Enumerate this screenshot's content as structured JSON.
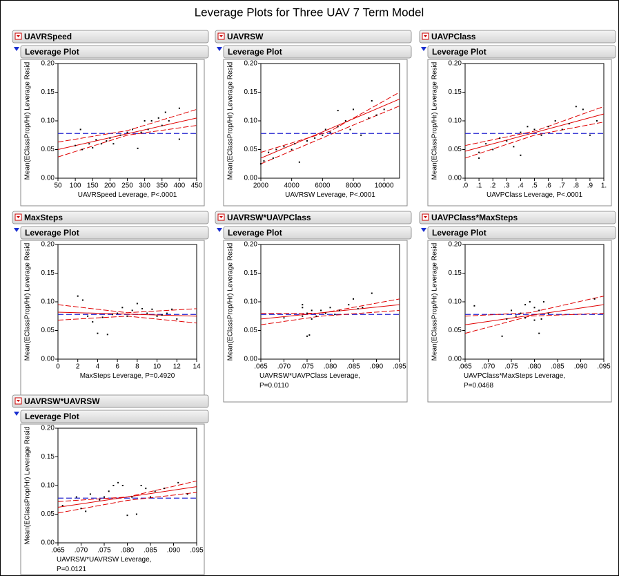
{
  "title": "Leverage Plots for Three UAV 7 Term Model",
  "chart_data": [
    {
      "type": "scatter",
      "header": "UAVRSpeed",
      "subheader": "Leverage Plot",
      "y_label": "Mean(EClassProp/Hr) Leverage Resid",
      "x_label": "UAVRSpeed Leverage, P<.0001",
      "xlim": [
        50,
        450
      ],
      "xticks": [
        50,
        100,
        150,
        200,
        250,
        300,
        350,
        400,
        450
      ],
      "ylim": [
        0,
        0.2
      ],
      "yticks": [
        {
          "value": 0,
          "label": "0.00"
        },
        {
          "value": 0.05,
          "label": "0.05"
        },
        {
          "value": 0.1,
          "label": "0.10"
        },
        {
          "value": 0.15,
          "label": "0.15"
        },
        {
          "value": 0.2,
          "label": "0.20"
        }
      ],
      "x": [
        100,
        115,
        120,
        140,
        150,
        160,
        175,
        190,
        200,
        210,
        230,
        250,
        265,
        280,
        290,
        300,
        310,
        320,
        340,
        350,
        360,
        370,
        400,
        400
      ],
      "values": [
        0.057,
        0.085,
        0.05,
        0.06,
        0.053,
        0.067,
        0.06,
        0.065,
        0.07,
        0.06,
        0.075,
        0.08,
        0.085,
        0.052,
        0.08,
        0.1,
        0.085,
        0.1,
        0.105,
        0.092,
        0.115,
        0.1,
        0.122,
        0.068
      ],
      "fit": {
        "x": [
          50,
          450
        ],
        "y": [
          0.05,
          0.105
        ]
      },
      "upper": {
        "x": [
          50,
          250,
          450
        ],
        "y": [
          0.063,
          0.083,
          0.12
        ]
      },
      "lower": {
        "x": [
          50,
          250,
          450
        ],
        "y": [
          0.037,
          0.075,
          0.092
        ]
      },
      "mean": 0.078,
      "point_color": "#000000",
      "fit_color": "#e00000",
      "mean_color": "#2424d0"
    },
    {
      "type": "scatter",
      "header": "UAVRSW",
      "subheader": "Leverage Plot",
      "y_label": "Mean(EClassProp/Hr) Leverage Resid",
      "x_label": "UAVRSW Leverage, P<.0001",
      "xlim": [
        2000,
        11000
      ],
      "xticks": [
        2000,
        4000,
        6000,
        8000,
        10000
      ],
      "ylim": [
        0,
        0.2
      ],
      "yticks": [
        {
          "value": 0,
          "label": "0.00"
        },
        {
          "value": 0.05,
          "label": "0.05"
        },
        {
          "value": 0.1,
          "label": "0.10"
        },
        {
          "value": 0.15,
          "label": "0.15"
        },
        {
          "value": 0.2,
          "label": "0.20"
        }
      ],
      "x": [
        2000,
        2200,
        2500,
        2800,
        3000,
        3500,
        4000,
        4200,
        4500,
        5000,
        5500,
        6000,
        6200,
        6500,
        7000,
        7000,
        7500,
        7800,
        8000,
        8500,
        9000,
        9200,
        9500,
        10000
      ],
      "values": [
        0.025,
        0.03,
        0.045,
        0.035,
        0.05,
        0.055,
        0.05,
        0.06,
        0.028,
        0.065,
        0.07,
        0.075,
        0.085,
        0.08,
        0.118,
        0.09,
        0.1,
        0.085,
        0.12,
        0.075,
        0.105,
        0.135,
        0.11,
        0.12
      ],
      "fit": {
        "x": [
          2000,
          11000
        ],
        "y": [
          0.035,
          0.138
        ]
      },
      "upper": {
        "x": [
          2000,
          6500,
          11000
        ],
        "y": [
          0.045,
          0.082,
          0.15
        ]
      },
      "lower": {
        "x": [
          2000,
          6500,
          11000
        ],
        "y": [
          0.025,
          0.076,
          0.126
        ]
      },
      "mean": 0.078,
      "point_color": "#000000",
      "fit_color": "#e00000",
      "mean_color": "#2424d0"
    },
    {
      "type": "scatter",
      "header": "UAVPClass",
      "subheader": "Leverage Plot",
      "y_label": "Mean(EClassProp/Hr) Leverage Resid",
      "x_label": "UAVPClass Leverage, P<.0001",
      "xlim": [
        0,
        1
      ],
      "xticks": [
        {
          "value": 0,
          "label": ".0"
        },
        {
          "value": 0.1,
          "label": ".1"
        },
        {
          "value": 0.2,
          "label": ".2"
        },
        {
          "value": 0.3,
          "label": ".3"
        },
        {
          "value": 0.4,
          "label": ".4"
        },
        {
          "value": 0.5,
          "label": ".5"
        },
        {
          "value": 0.6,
          "label": ".6"
        },
        {
          "value": 0.7,
          "label": ".7"
        },
        {
          "value": 0.8,
          "label": ".8"
        },
        {
          "value": 0.9,
          "label": ".9"
        },
        {
          "value": 1,
          "label": "1."
        }
      ],
      "ylim": [
        0,
        0.2
      ],
      "yticks": [
        {
          "value": 0,
          "label": "0.00"
        },
        {
          "value": 0.05,
          "label": "0.05"
        },
        {
          "value": 0.1,
          "label": "0.10"
        },
        {
          "value": 0.15,
          "label": "0.15"
        },
        {
          "value": 0.2,
          "label": "0.20"
        }
      ],
      "x": [
        0.1,
        0.1,
        0.15,
        0.2,
        0.25,
        0.3,
        0.35,
        0.4,
        0.4,
        0.45,
        0.5,
        0.55,
        0.6,
        0.65,
        0.7,
        0.75,
        0.8,
        0.85,
        0.9,
        0.95
      ],
      "values": [
        0.035,
        0.045,
        0.06,
        0.05,
        0.07,
        0.065,
        0.055,
        0.04,
        0.08,
        0.09,
        0.085,
        0.075,
        0.09,
        0.1,
        0.085,
        0.095,
        0.125,
        0.12,
        0.075,
        0.1
      ],
      "fit": {
        "x": [
          0,
          1
        ],
        "y": [
          0.047,
          0.112
        ]
      },
      "upper": {
        "x": [
          0,
          0.5,
          1
        ],
        "y": [
          0.057,
          0.082,
          0.125
        ]
      },
      "lower": {
        "x": [
          0,
          0.5,
          1
        ],
        "y": [
          0.035,
          0.075,
          0.098
        ]
      },
      "mean": 0.078,
      "point_color": "#000000",
      "fit_color": "#e00000",
      "mean_color": "#2424d0"
    },
    {
      "type": "scatter",
      "header": "MaxSteps",
      "subheader": "Leverage Plot",
      "y_label": "Mean(EClassProp/Hr) Leverage Resid",
      "x_label": "MaxSteps Leverage, P=0.4920",
      "xlim": [
        0,
        14
      ],
      "xticks": [
        0,
        2,
        4,
        6,
        8,
        10,
        12,
        14
      ],
      "ylim": [
        0,
        0.2
      ],
      "yticks": [
        {
          "value": 0,
          "label": "0.00"
        },
        {
          "value": 0.05,
          "label": "0.05"
        },
        {
          "value": 0.1,
          "label": "0.10"
        },
        {
          "value": 0.15,
          "label": "0.15"
        },
        {
          "value": 0.2,
          "label": "0.20"
        }
      ],
      "x": [
        2,
        2.5,
        3,
        3.5,
        4,
        4.5,
        5,
        5.5,
        6,
        6.5,
        7,
        7.5,
        8,
        8.5,
        9,
        9.5,
        10,
        10.5,
        11,
        11.5,
        12
      ],
      "values": [
        0.11,
        0.103,
        0.075,
        0.065,
        0.045,
        0.073,
        0.043,
        0.078,
        0.08,
        0.09,
        0.075,
        0.085,
        0.097,
        0.088,
        0.08,
        0.087,
        0.075,
        0.077,
        0.08,
        0.087,
        0.07
      ],
      "fit": {
        "x": [
          0,
          14
        ],
        "y": [
          0.082,
          0.075
        ]
      },
      "upper": {
        "x": [
          0,
          7,
          14
        ],
        "y": [
          0.095,
          0.081,
          0.088
        ]
      },
      "lower": {
        "x": [
          0,
          7,
          14
        ],
        "y": [
          0.068,
          0.075,
          0.063
        ]
      },
      "mean": 0.078,
      "point_color": "#000000",
      "fit_color": "#e00000",
      "mean_color": "#2424d0"
    },
    {
      "type": "scatter",
      "header": "UAVRSW*UAVPClass",
      "subheader": "Leverage Plot",
      "y_label": "Mean(EClassProp/Hr) Leverage Resid",
      "x_label": "UAVRSW*UAVPClass Leverage, P=0.0110",
      "xlim": [
        0.065,
        0.095
      ],
      "xticks": [
        {
          "value": 0.065,
          "label": ".065"
        },
        {
          "value": 0.07,
          "label": ".070"
        },
        {
          "value": 0.075,
          "label": ".075"
        },
        {
          "value": 0.08,
          "label": ".080"
        },
        {
          "value": 0.085,
          "label": ".085"
        },
        {
          "value": 0.09,
          "label": ".090"
        },
        {
          "value": 0.095,
          "label": ".095"
        }
      ],
      "ylim": [
        0,
        0.2
      ],
      "yticks": [
        {
          "value": 0,
          "label": "0.00"
        },
        {
          "value": 0.05,
          "label": "0.05"
        },
        {
          "value": 0.1,
          "label": "0.10"
        },
        {
          "value": 0.15,
          "label": "0.15"
        },
        {
          "value": 0.2,
          "label": "0.20"
        }
      ],
      "x": [
        0.074,
        0.074,
        0.075,
        0.0755,
        0.074,
        0.075,
        0.076,
        0.077,
        0.078,
        0.079,
        0.08,
        0.081,
        0.082,
        0.084,
        0.085,
        0.086,
        0.087,
        0.089,
        0.07,
        0.076
      ],
      "values": [
        0.095,
        0.09,
        0.04,
        0.042,
        0.075,
        0.08,
        0.085,
        0.075,
        0.085,
        0.08,
        0.09,
        0.078,
        0.085,
        0.095,
        0.105,
        0.088,
        0.09,
        0.115,
        0.072,
        0.07
      ],
      "fit": {
        "x": [
          0.065,
          0.095
        ],
        "y": [
          0.07,
          0.095
        ]
      },
      "upper": {
        "x": [
          0.065,
          0.078,
          0.095
        ],
        "y": [
          0.08,
          0.08,
          0.105
        ]
      },
      "lower": {
        "x": [
          0.065,
          0.078,
          0.095
        ],
        "y": [
          0.06,
          0.075,
          0.085
        ]
      },
      "mean": 0.078,
      "point_color": "#000000",
      "fit_color": "#e00000",
      "mean_color": "#2424d0"
    },
    {
      "type": "scatter",
      "header": "UAVPClass*MaxSteps",
      "subheader": "Leverage Plot",
      "y_label": "Mean(EClassProp/Hr) Leverage Resid",
      "x_label": "UAVPClass*MaxSteps Leverage, P=0.0468",
      "xlim": [
        0.065,
        0.095
      ],
      "xticks": [
        {
          "value": 0.065,
          "label": ".065"
        },
        {
          "value": 0.07,
          "label": ".070"
        },
        {
          "value": 0.075,
          "label": ".075"
        },
        {
          "value": 0.08,
          "label": ".080"
        },
        {
          "value": 0.085,
          "label": ".085"
        },
        {
          "value": 0.09,
          "label": ".090"
        },
        {
          "value": 0.095,
          "label": ".095"
        }
      ],
      "ylim": [
        0,
        0.2
      ],
      "yticks": [
        {
          "value": 0,
          "label": "0.00"
        },
        {
          "value": 0.05,
          "label": "0.05"
        },
        {
          "value": 0.1,
          "label": "0.10"
        },
        {
          "value": 0.15,
          "label": "0.15"
        },
        {
          "value": 0.2,
          "label": "0.20"
        }
      ],
      "x": [
        0.067,
        0.073,
        0.074,
        0.075,
        0.076,
        0.077,
        0.078,
        0.079,
        0.08,
        0.081,
        0.081,
        0.082,
        0.0815,
        0.083,
        0.093,
        0.078,
        0.08
      ],
      "values": [
        0.093,
        0.04,
        0.07,
        0.085,
        0.075,
        0.08,
        0.095,
        0.1,
        0.09,
        0.085,
        0.045,
        0.1,
        0.07,
        0.08,
        0.105,
        0.072,
        0.068
      ],
      "fit": {
        "x": [
          0.065,
          0.095
        ],
        "y": [
          0.06,
          0.095
        ]
      },
      "upper": {
        "x": [
          0.065,
          0.079,
          0.095
        ],
        "y": [
          0.075,
          0.081,
          0.11
        ]
      },
      "lower": {
        "x": [
          0.065,
          0.079,
          0.095
        ],
        "y": [
          0.045,
          0.075,
          0.08
        ]
      },
      "mean": 0.078,
      "point_color": "#000000",
      "fit_color": "#e00000",
      "mean_color": "#2424d0"
    },
    {
      "type": "scatter",
      "header": "UAVRSW*UAVRSW",
      "subheader": "Leverage Plot",
      "y_label": "Mean(EClassProp/Hr) Leverage Resid",
      "x_label": "UAVRSW*UAVRSW Leverage, P=0.0121",
      "xlim": [
        0.065,
        0.095
      ],
      "xticks": [
        {
          "value": 0.065,
          "label": ".065"
        },
        {
          "value": 0.07,
          "label": ".070"
        },
        {
          "value": 0.075,
          "label": ".075"
        },
        {
          "value": 0.08,
          "label": ".080"
        },
        {
          "value": 0.085,
          "label": ".085"
        },
        {
          "value": 0.09,
          "label": ".090"
        },
        {
          "value": 0.095,
          "label": ".095"
        }
      ],
      "ylim": [
        0,
        0.2
      ],
      "yticks": [
        {
          "value": 0,
          "label": "0.00"
        },
        {
          "value": 0.05,
          "label": "0.05"
        },
        {
          "value": 0.1,
          "label": "0.10"
        },
        {
          "value": 0.15,
          "label": "0.15"
        },
        {
          "value": 0.2,
          "label": "0.20"
        }
      ],
      "x": [
        0.066,
        0.069,
        0.07,
        0.071,
        0.072,
        0.074,
        0.075,
        0.076,
        0.077,
        0.078,
        0.079,
        0.08,
        0.081,
        0.082,
        0.083,
        0.084,
        0.085,
        0.086,
        0.088,
        0.091,
        0.093
      ],
      "values": [
        0.065,
        0.08,
        0.06,
        0.055,
        0.085,
        0.075,
        0.08,
        0.09,
        0.1,
        0.105,
        0.1,
        0.048,
        0.08,
        0.05,
        0.1,
        0.095,
        0.08,
        0.09,
        0.095,
        0.105,
        0.085
      ],
      "fit": {
        "x": [
          0.065,
          0.095
        ],
        "y": [
          0.062,
          0.098
        ]
      },
      "upper": {
        "x": [
          0.065,
          0.08,
          0.095
        ],
        "y": [
          0.072,
          0.08,
          0.108
        ]
      },
      "lower": {
        "x": [
          0.065,
          0.08,
          0.095
        ],
        "y": [
          0.052,
          0.074,
          0.088
        ]
      },
      "mean": 0.078,
      "point_color": "#000000",
      "fit_color": "#e00000",
      "mean_color": "#2424d0"
    }
  ]
}
